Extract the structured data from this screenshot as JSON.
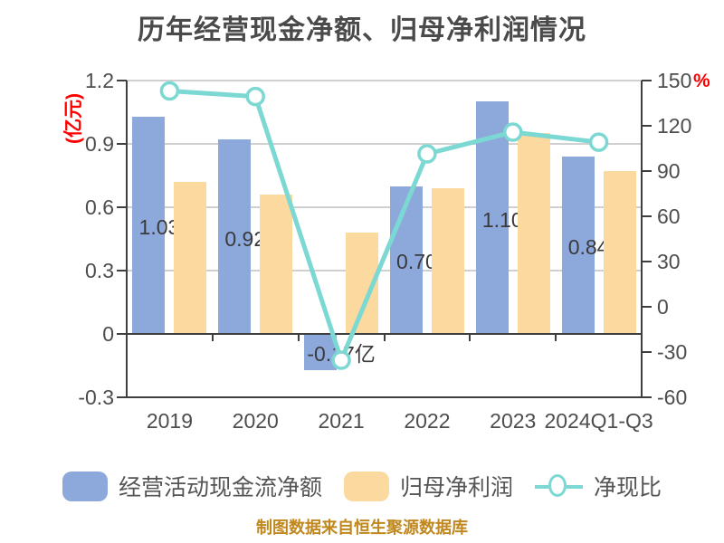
{
  "title": "历年经营现金净额、归母净利润情况",
  "source_note": "制图数据来自恒生聚源数据库",
  "colors": {
    "cashflow_bar": "#8DA9DC",
    "profit_bar": "#FBD99F",
    "ratio_line": "#7CD8D3",
    "axis_unit_red": "#FF0000",
    "source_gold": "#C0881E",
    "text_gray": "#4D4D4D",
    "bar_label_gray": "#3A3A3A",
    "grid_light": "#D0D0D0",
    "axis_dark": "#3F3F3F",
    "marker_fill": "#FFFFFF"
  },
  "left_axis": {
    "unit": "(亿元)",
    "tick_labels": [
      "1.2",
      "0.9",
      "0.6",
      "0.3",
      "0",
      "-0.3"
    ],
    "tick_values": [
      1.2,
      0.9,
      0.6,
      0.3,
      0,
      -0.3
    ],
    "max": 1.2,
    "min": -0.3
  },
  "right_axis": {
    "unit": "%",
    "tick_labels": [
      "150",
      "120",
      "90",
      "60",
      "30",
      "0",
      "-30",
      "-60"
    ],
    "tick_values": [
      150,
      120,
      90,
      60,
      30,
      0,
      -30,
      -60
    ],
    "max": 150,
    "min": -60
  },
  "legend": {
    "cashflow": "经营活动现金流净额",
    "profit": "归母净利润",
    "ratio": "净现比"
  },
  "chart_data": {
    "type": "bar",
    "title": "历年经营现金净额、归母净利润情况",
    "categories": [
      "2019",
      "2020",
      "2021",
      "2022",
      "2023",
      "2024Q1-Q3"
    ],
    "series": [
      {
        "name": "经营活动现金流净额",
        "type": "bar",
        "axis": "left",
        "unit": "亿元",
        "values": [
          1.03,
          0.92,
          -0.17,
          0.7,
          1.1,
          0.84
        ],
        "data_labels": [
          "1.03亿",
          "0.92亿",
          "-0.17亿",
          "0.70亿",
          "1.10亿",
          "0.84亿"
        ]
      },
      {
        "name": "归母净利润",
        "type": "bar",
        "axis": "left",
        "unit": "亿元",
        "values": [
          0.72,
          0.66,
          0.48,
          0.69,
          0.95,
          0.77
        ]
      },
      {
        "name": "净现比",
        "type": "line",
        "axis": "right",
        "unit": "%",
        "values": [
          143.1,
          139.4,
          -35.4,
          101.4,
          115.8,
          109.1
        ]
      }
    ],
    "left_ylim": [
      -0.3,
      1.2
    ],
    "right_ylim": [
      -60,
      150
    ],
    "grid": true,
    "legend_position": "bottom"
  }
}
